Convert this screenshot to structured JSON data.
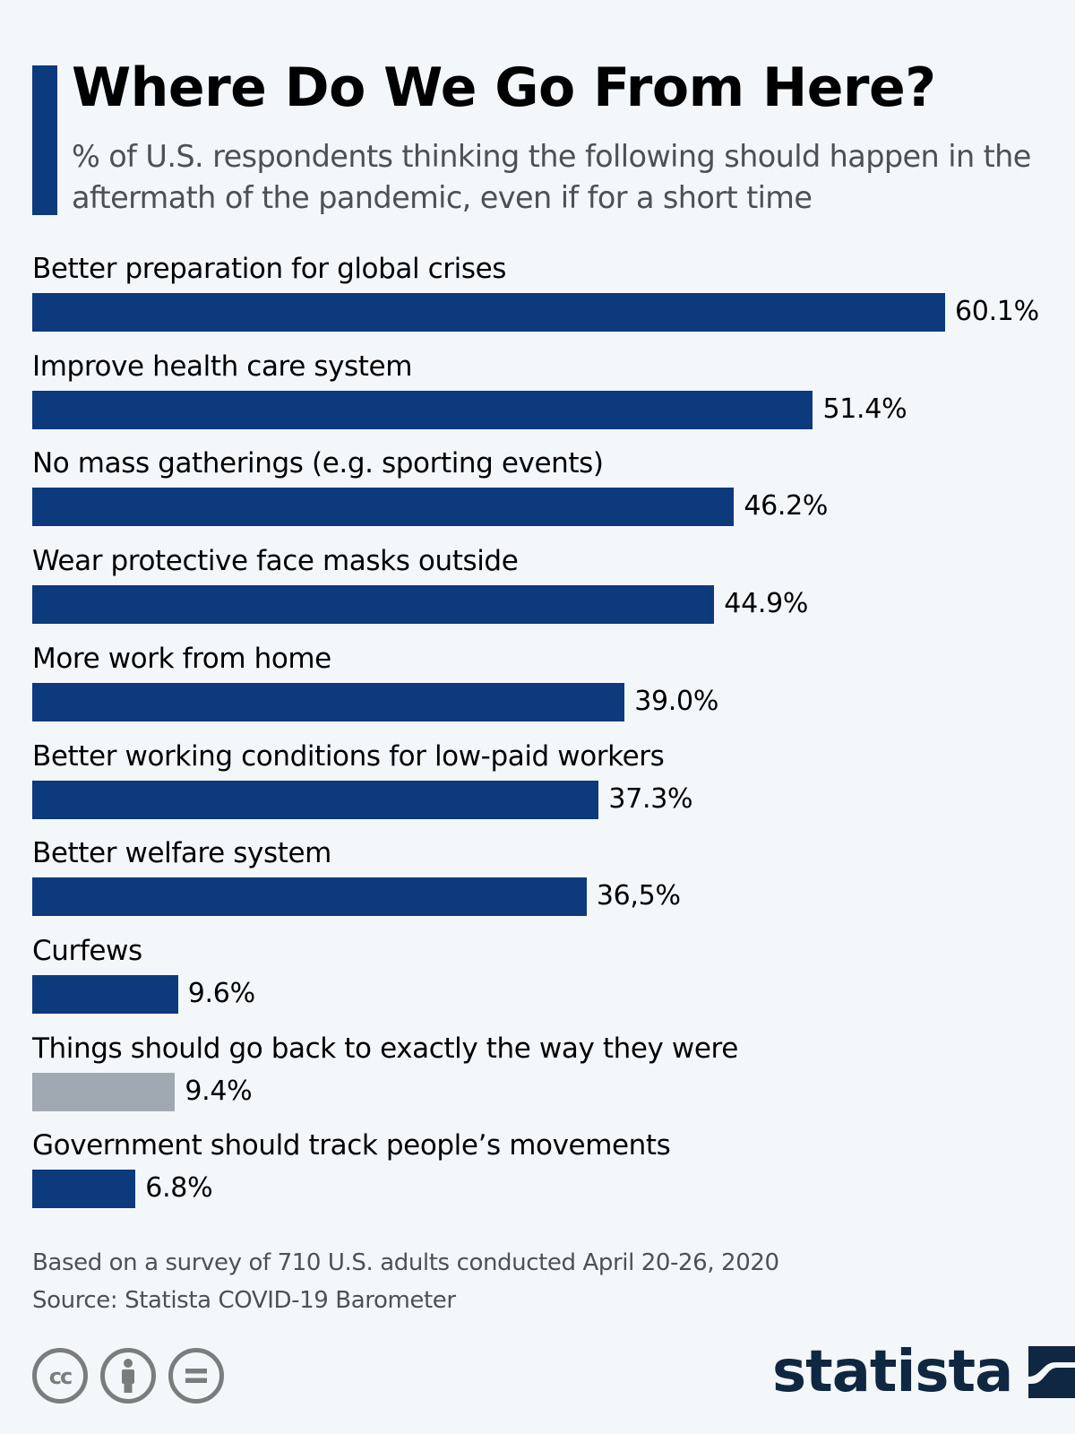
{
  "header": {
    "title": "Where Do We Go From Here?",
    "subtitle": "% of U.S. respondents thinking the following should happen in the aftermath of the pandemic, even if for a short time"
  },
  "colors": {
    "accent": "#0c3a7d",
    "bar_primary": "#0c3a7d",
    "bar_highlight_gray": "#a0a9b1",
    "background": "#f4f7fa",
    "logo": "#0f2741",
    "icon_gray": "#7b7d7c"
  },
  "chart_data": {
    "type": "bar",
    "orientation": "horizontal",
    "title": "Where Do We Go From Here?",
    "subtitle": "% of U.S. respondents thinking the following should happen in the aftermath of the pandemic, even if for a short time",
    "xlabel": "",
    "ylabel": "",
    "unit": "%",
    "grid": false,
    "legend": null,
    "categories": [
      "Better preparation for global crises",
      "Improve health care system",
      "No mass gatherings (e.g. sporting events)",
      "Wear protective face masks outside",
      "More work from home",
      "Better working conditions for low-paid workers",
      "Better welfare system",
      "Curfews",
      "Things should go back to exactly the way they were",
      "Government should track people’s movements"
    ],
    "values": [
      60.1,
      51.4,
      46.2,
      44.9,
      39.0,
      37.3,
      36.5,
      9.6,
      9.4,
      6.8
    ],
    "value_labels": [
      "60.1%",
      "51.4%",
      "46.2%",
      "44.9%",
      "39.0%",
      "37.3%",
      "36,5%",
      "9.6%",
      "9.4%",
      "6.8%"
    ],
    "bar_colors": [
      "#0c3a7d",
      "#0c3a7d",
      "#0c3a7d",
      "#0c3a7d",
      "#0c3a7d",
      "#0c3a7d",
      "#0c3a7d",
      "#0c3a7d",
      "#a0a9b1",
      "#0c3a7d"
    ]
  },
  "footer": {
    "note": "Based on a survey of 710 U.S. adults conducted April 20-26, 2020",
    "source": "Source: Statista COVID-19 Barometer",
    "license_icons": [
      "cc-icon",
      "attribution-icon",
      "no-derivatives-icon"
    ],
    "brand": "statista"
  }
}
